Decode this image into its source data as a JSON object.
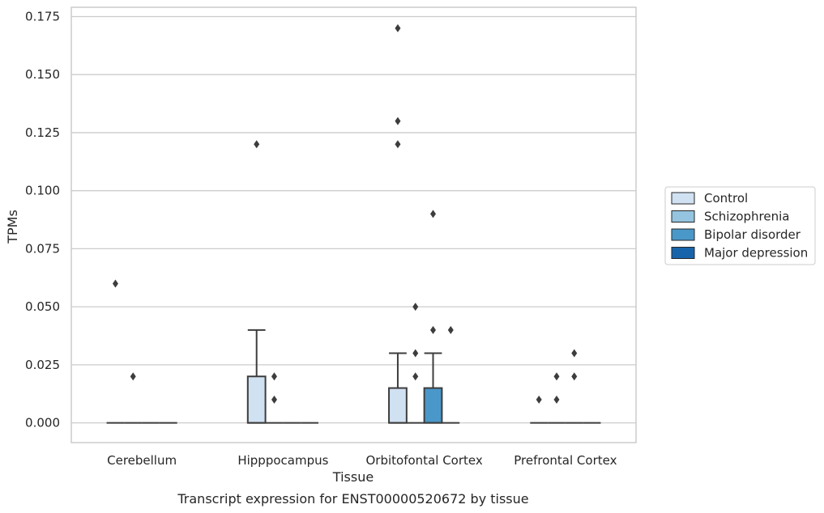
{
  "chart_data": {
    "type": "box",
    "title": "Transcript expression for ENST00000520672 by tissue",
    "xlabel": "Tissue",
    "ylabel": "TPMs",
    "ylim": [
      -0.0085,
      0.179
    ],
    "yticks": [
      "0.000",
      "0.025",
      "0.050",
      "0.075",
      "0.100",
      "0.125",
      "0.150",
      "0.175"
    ],
    "grid": "horizontal",
    "legend_position": "right",
    "categories": [
      "Cerebellum",
      "Hipppocampus",
      "Orbitofontal Cortex",
      "Prefrontal Cortex"
    ],
    "series": [
      {
        "name": "Control",
        "color": "#d0e1f2",
        "boxes": [
          {
            "q1": 0,
            "median": 0,
            "q3": 0,
            "whisker_low": 0,
            "whisker_high": 0,
            "outliers": [
              0.06
            ]
          },
          {
            "q1": 0,
            "median": 0,
            "q3": 0.02,
            "whisker_low": 0,
            "whisker_high": 0.04,
            "outliers": [
              0.12
            ]
          },
          {
            "q1": 0,
            "median": 0,
            "q3": 0.015,
            "whisker_low": 0,
            "whisker_high": 0.03,
            "outliers": [
              0.12,
              0.13,
              0.17
            ]
          },
          {
            "q1": 0,
            "median": 0,
            "q3": 0,
            "whisker_low": 0,
            "whisker_high": 0,
            "outliers": [
              0.01
            ]
          }
        ]
      },
      {
        "name": "Schizophrenia",
        "color": "#94c4df",
        "boxes": [
          {
            "q1": 0,
            "median": 0,
            "q3": 0,
            "whisker_low": 0,
            "whisker_high": 0,
            "outliers": [
              0.02
            ]
          },
          {
            "q1": 0,
            "median": 0,
            "q3": 0,
            "whisker_low": 0,
            "whisker_high": 0,
            "outliers": [
              0.01,
              0.02
            ]
          },
          {
            "q1": 0,
            "median": 0,
            "q3": 0,
            "whisker_low": 0,
            "whisker_high": 0,
            "outliers": [
              0.02,
              0.03,
              0.05
            ]
          },
          {
            "q1": 0,
            "median": 0,
            "q3": 0,
            "whisker_low": 0,
            "whisker_high": 0,
            "outliers": [
              0.01,
              0.02
            ]
          }
        ]
      },
      {
        "name": "Bipolar disorder",
        "color": "#4a98c9",
        "boxes": [
          {
            "q1": 0,
            "median": 0,
            "q3": 0,
            "whisker_low": 0,
            "whisker_high": 0,
            "outliers": []
          },
          {
            "q1": 0,
            "median": 0,
            "q3": 0,
            "whisker_low": 0,
            "whisker_high": 0,
            "outliers": []
          },
          {
            "q1": 0,
            "median": 0,
            "q3": 0.015,
            "whisker_low": 0,
            "whisker_high": 0.03,
            "outliers": [
              0.04,
              0.09
            ]
          },
          {
            "q1": 0,
            "median": 0,
            "q3": 0,
            "whisker_low": 0,
            "whisker_high": 0,
            "outliers": [
              0.02,
              0.03
            ]
          }
        ]
      },
      {
        "name": "Major depression",
        "color": "#1764ab",
        "boxes": [
          {
            "q1": 0,
            "median": 0,
            "q3": 0,
            "whisker_low": 0,
            "whisker_high": 0,
            "outliers": []
          },
          {
            "q1": 0,
            "median": 0,
            "q3": 0,
            "whisker_low": 0,
            "whisker_high": 0,
            "outliers": []
          },
          {
            "q1": 0,
            "median": 0,
            "q3": 0,
            "whisker_low": 0,
            "whisker_high": 0,
            "outliers": [
              0.04
            ]
          },
          {
            "q1": 0,
            "median": 0,
            "q3": 0,
            "whisker_low": 0,
            "whisker_high": 0,
            "outliers": []
          }
        ]
      }
    ]
  }
}
